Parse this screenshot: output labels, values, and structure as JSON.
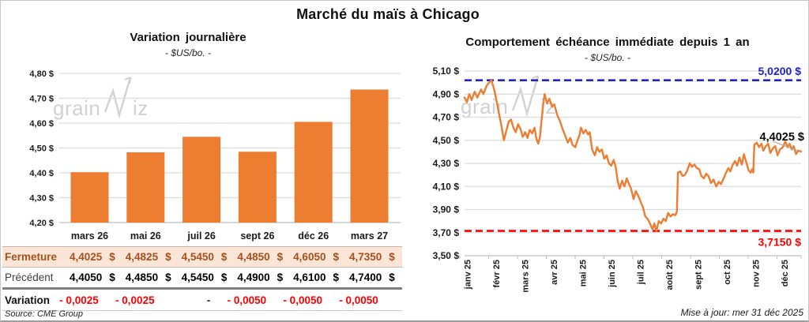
{
  "title": "Marché du maïs à Chicago",
  "source": "Source: CME Group",
  "updated": "Mise à jour: mer 31 déc 2025",
  "watermark": "grainwiz",
  "colors": {
    "orange": "#ED7D31",
    "grid": "#DCDCDC",
    "axis": "#BFBFBF",
    "blue": "#2121CE",
    "red": "#FF0000",
    "close_text": "#A4511E",
    "close_bg": "#FBE5D6",
    "leader": "#A6A6A6",
    "watermark_gray": "#C9C9C9"
  },
  "chart_data": [
    {
      "type": "bar",
      "title": "Variation journalière",
      "subtitle": "- $US/bo. -",
      "categories": [
        "mars 26",
        "mai 26",
        "juil 26",
        "sept 26",
        "déc 26",
        "mars 27"
      ],
      "values": [
        4.4025,
        4.4825,
        4.545,
        4.485,
        4.605,
        4.735
      ],
      "ylim": [
        4.2,
        4.8
      ],
      "yticks": [
        [
          4.2,
          "4,20 $"
        ],
        [
          4.3,
          "4,30 $"
        ],
        [
          4.4,
          "4,40 $"
        ],
        [
          4.5,
          "4,50 $"
        ],
        [
          4.6,
          "4,60 $"
        ],
        [
          4.7,
          "4,70 $"
        ],
        [
          4.8,
          "4,80 $"
        ]
      ],
      "bar_color": "#ED7D31",
      "grid": true,
      "legend": false
    },
    {
      "type": "line",
      "title": "Comportement échéance immédiate depuis 1 an",
      "subtitle": "- $US/bo. -",
      "x_labels": [
        "janv 25",
        "févr 25",
        "mars 25",
        "avr 25",
        "mai 25",
        "juin 25",
        "juil 25",
        "août 25",
        "sept 25",
        "oct 25",
        "nov 25",
        "déc 25"
      ],
      "ylim": [
        3.5,
        5.1
      ],
      "yticks": [
        [
          3.5,
          "3,50 $"
        ],
        [
          3.7,
          "3,70 $"
        ],
        [
          3.9,
          "3,90 $"
        ],
        [
          4.1,
          "4,10 $"
        ],
        [
          4.3,
          "4,30 $"
        ],
        [
          4.5,
          "4,50 $"
        ],
        [
          4.7,
          "4,70 $"
        ],
        [
          4.9,
          "4,90 $"
        ],
        [
          5.1,
          "5,10 $"
        ]
      ],
      "grid": true,
      "legend": false,
      "series": [
        {
          "name": "échéance immédiate",
          "color": "#ED7D31",
          "points": [
            [
              0.0,
              4.87
            ],
            [
              0.007,
              4.83
            ],
            [
              0.014,
              4.9
            ],
            [
              0.021,
              4.85
            ],
            [
              0.03,
              4.92
            ],
            [
              0.038,
              4.87
            ],
            [
              0.049,
              4.94
            ],
            [
              0.056,
              4.9
            ],
            [
              0.065,
              4.97
            ],
            [
              0.073,
              5.0
            ],
            [
              0.08,
              5.02
            ],
            [
              0.089,
              4.93
            ],
            [
              0.098,
              4.8
            ],
            [
              0.108,
              4.65
            ],
            [
              0.117,
              4.5
            ],
            [
              0.124,
              4.58
            ],
            [
              0.131,
              4.66
            ],
            [
              0.138,
              4.68
            ],
            [
              0.145,
              4.61
            ],
            [
              0.152,
              4.57
            ],
            [
              0.159,
              4.64
            ],
            [
              0.166,
              4.6
            ],
            [
              0.173,
              4.53
            ],
            [
              0.18,
              4.57
            ],
            [
              0.187,
              4.52
            ],
            [
              0.194,
              4.59
            ],
            [
              0.201,
              4.56
            ],
            [
              0.208,
              4.61
            ],
            [
              0.213,
              4.52
            ],
            [
              0.219,
              4.47
            ],
            [
              0.224,
              4.53
            ],
            [
              0.229,
              4.68
            ],
            [
              0.234,
              4.82
            ],
            [
              0.238,
              4.9
            ],
            [
              0.245,
              4.82
            ],
            [
              0.252,
              4.86
            ],
            [
              0.26,
              4.79
            ],
            [
              0.267,
              4.81
            ],
            [
              0.275,
              4.72
            ],
            [
              0.283,
              4.67
            ],
            [
              0.291,
              4.6
            ],
            [
              0.299,
              4.54
            ],
            [
              0.307,
              4.48
            ],
            [
              0.314,
              4.52
            ],
            [
              0.321,
              4.46
            ],
            [
              0.329,
              4.44
            ],
            [
              0.336,
              4.5
            ],
            [
              0.341,
              4.54
            ],
            [
              0.346,
              4.61
            ],
            [
              0.353,
              4.56
            ],
            [
              0.36,
              4.59
            ],
            [
              0.367,
              4.55
            ],
            [
              0.372,
              4.57
            ],
            [
              0.379,
              4.42
            ],
            [
              0.387,
              4.37
            ],
            [
              0.394,
              4.44
            ],
            [
              0.401,
              4.4
            ],
            [
              0.408,
              4.42
            ],
            [
              0.415,
              4.34
            ],
            [
              0.422,
              4.37
            ],
            [
              0.429,
              4.3
            ],
            [
              0.436,
              4.28
            ],
            [
              0.443,
              4.33
            ],
            [
              0.449,
              4.27
            ],
            [
              0.455,
              4.15
            ],
            [
              0.461,
              4.08
            ],
            [
              0.468,
              4.15
            ],
            [
              0.475,
              4.1
            ],
            [
              0.482,
              4.17
            ],
            [
              0.489,
              4.12
            ],
            [
              0.495,
              4.08
            ],
            [
              0.502,
              3.99
            ],
            [
              0.509,
              4.06
            ],
            [
              0.516,
              4.02
            ],
            [
              0.523,
              3.97
            ],
            [
              0.53,
              3.92
            ],
            [
              0.537,
              3.84
            ],
            [
              0.544,
              3.82
            ],
            [
              0.551,
              3.78
            ],
            [
              0.558,
              3.73
            ],
            [
              0.564,
              3.78
            ],
            [
              0.57,
              3.715
            ],
            [
              0.577,
              3.8
            ],
            [
              0.584,
              3.78
            ],
            [
              0.591,
              3.82
            ],
            [
              0.598,
              3.8
            ],
            [
              0.605,
              3.87
            ],
            [
              0.612,
              3.84
            ],
            [
              0.619,
              3.86
            ],
            [
              0.626,
              3.85
            ],
            [
              0.631,
              3.88
            ],
            [
              0.634,
              4.22
            ],
            [
              0.641,
              4.23
            ],
            [
              0.648,
              4.19
            ],
            [
              0.655,
              4.2
            ],
            [
              0.662,
              4.24
            ],
            [
              0.669,
              4.3
            ],
            [
              0.676,
              4.27
            ],
            [
              0.683,
              4.29
            ],
            [
              0.69,
              4.26
            ],
            [
              0.697,
              4.25
            ],
            [
              0.704,
              4.19
            ],
            [
              0.711,
              4.17
            ],
            [
              0.718,
              4.21
            ],
            [
              0.725,
              4.19
            ],
            [
              0.732,
              4.13
            ],
            [
              0.74,
              4.16
            ],
            [
              0.748,
              4.1
            ],
            [
              0.755,
              4.14
            ],
            [
              0.762,
              4.12
            ],
            [
              0.77,
              4.17
            ],
            [
              0.777,
              4.22
            ],
            [
              0.784,
              4.26
            ],
            [
              0.79,
              4.23
            ],
            [
              0.797,
              4.29
            ],
            [
              0.804,
              4.32
            ],
            [
              0.81,
              4.28
            ],
            [
              0.817,
              4.35
            ],
            [
              0.824,
              4.29
            ],
            [
              0.83,
              4.38
            ],
            [
              0.837,
              4.31
            ],
            [
              0.844,
              4.24
            ],
            [
              0.85,
              4.22
            ],
            [
              0.855,
              4.25
            ],
            [
              0.858,
              4.22
            ],
            [
              0.861,
              4.46
            ],
            [
              0.868,
              4.48
            ],
            [
              0.875,
              4.44
            ],
            [
              0.882,
              4.47
            ],
            [
              0.888,
              4.41
            ],
            [
              0.895,
              4.45
            ],
            [
              0.902,
              4.47
            ],
            [
              0.909,
              4.39
            ],
            [
              0.916,
              4.43
            ],
            [
              0.923,
              4.45
            ],
            [
              0.93,
              4.37
            ],
            [
              0.937,
              4.42
            ],
            [
              0.946,
              4.44
            ],
            [
              0.953,
              4.49
            ],
            [
              0.96,
              4.44
            ],
            [
              0.966,
              4.47
            ],
            [
              0.972,
              4.42
            ],
            [
              0.978,
              4.45
            ],
            [
              0.985,
              4.38
            ],
            [
              0.991,
              4.41
            ],
            [
              1.0,
              4.4025
            ]
          ]
        }
      ],
      "reference_lines": [
        {
          "value": 5.02,
          "label": "5,0200 $",
          "color": "#2121CE",
          "style": "dashed",
          "label_position": "above"
        },
        {
          "value": 3.715,
          "label": "3,7150 $",
          "color": "#FF0000",
          "style": "dashed",
          "label_position": "below"
        }
      ],
      "end_annotation": {
        "label": "4,4025 $",
        "value": 4.4025
      }
    }
  ],
  "table": {
    "rows": [
      {
        "label": "Fermeture",
        "style": "close",
        "unit": "$",
        "values": [
          "4,4025",
          "4,4825",
          "4,5450",
          "4,4850",
          "4,6050",
          "4,7350"
        ]
      },
      {
        "label": "Précédent",
        "style": "previous",
        "unit": "$",
        "values": [
          "4,4050",
          "4,4850",
          "4,5450",
          "4,4900",
          "4,6100",
          "4,7400"
        ]
      },
      {
        "label": "Variation",
        "style": "variation",
        "unit": "",
        "values": [
          "- 0,0025",
          "- 0,0025",
          "-",
          "- 0,0050",
          "- 0,0050",
          "- 0,0050"
        ]
      }
    ]
  }
}
